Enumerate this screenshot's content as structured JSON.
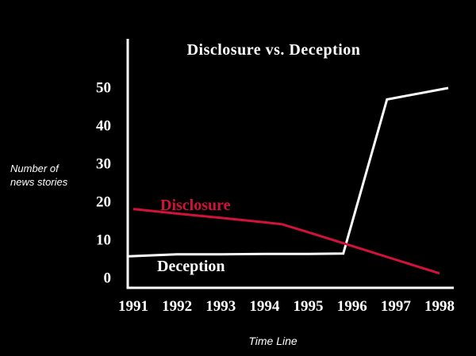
{
  "chart_data": {
    "type": "line",
    "title": "Disclosure vs. Deception",
    "xlabel": "Time Line",
    "ylabel": "Number of\nnews stories",
    "xticks": [
      1991,
      1992,
      1993,
      1994,
      1995,
      1996,
      1997,
      1998
    ],
    "yticks": [
      0,
      10,
      20,
      30,
      40,
      50
    ],
    "xlim": [
      1990.9,
      1998.3
    ],
    "ylim": [
      0,
      50
    ],
    "grid": false,
    "legend_position": "inline-on-line",
    "background_color": "#000000",
    "axis_color": "#ffffff",
    "series": [
      {
        "name": "Disclosure",
        "color": "#d2123a",
        "points": [
          [
            1991,
            18.2
          ],
          [
            1992,
            17.0
          ],
          [
            1993,
            15.9
          ],
          [
            1994,
            14.7
          ],
          [
            1994.4,
            14.2
          ],
          [
            1995,
            12.1
          ],
          [
            1996,
            8.5
          ],
          [
            1997,
            4.9
          ],
          [
            1998,
            1.3
          ]
        ]
      },
      {
        "name": "Deception",
        "color": "#ffffff",
        "points": [
          [
            1990.9,
            5.8
          ],
          [
            1992,
            6.3
          ],
          [
            1993,
            6.3
          ],
          [
            1994,
            6.4
          ],
          [
            1995,
            6.4
          ],
          [
            1995.8,
            6.5
          ],
          [
            1996.8,
            47.0
          ],
          [
            1998.2,
            50.0
          ]
        ]
      }
    ]
  }
}
